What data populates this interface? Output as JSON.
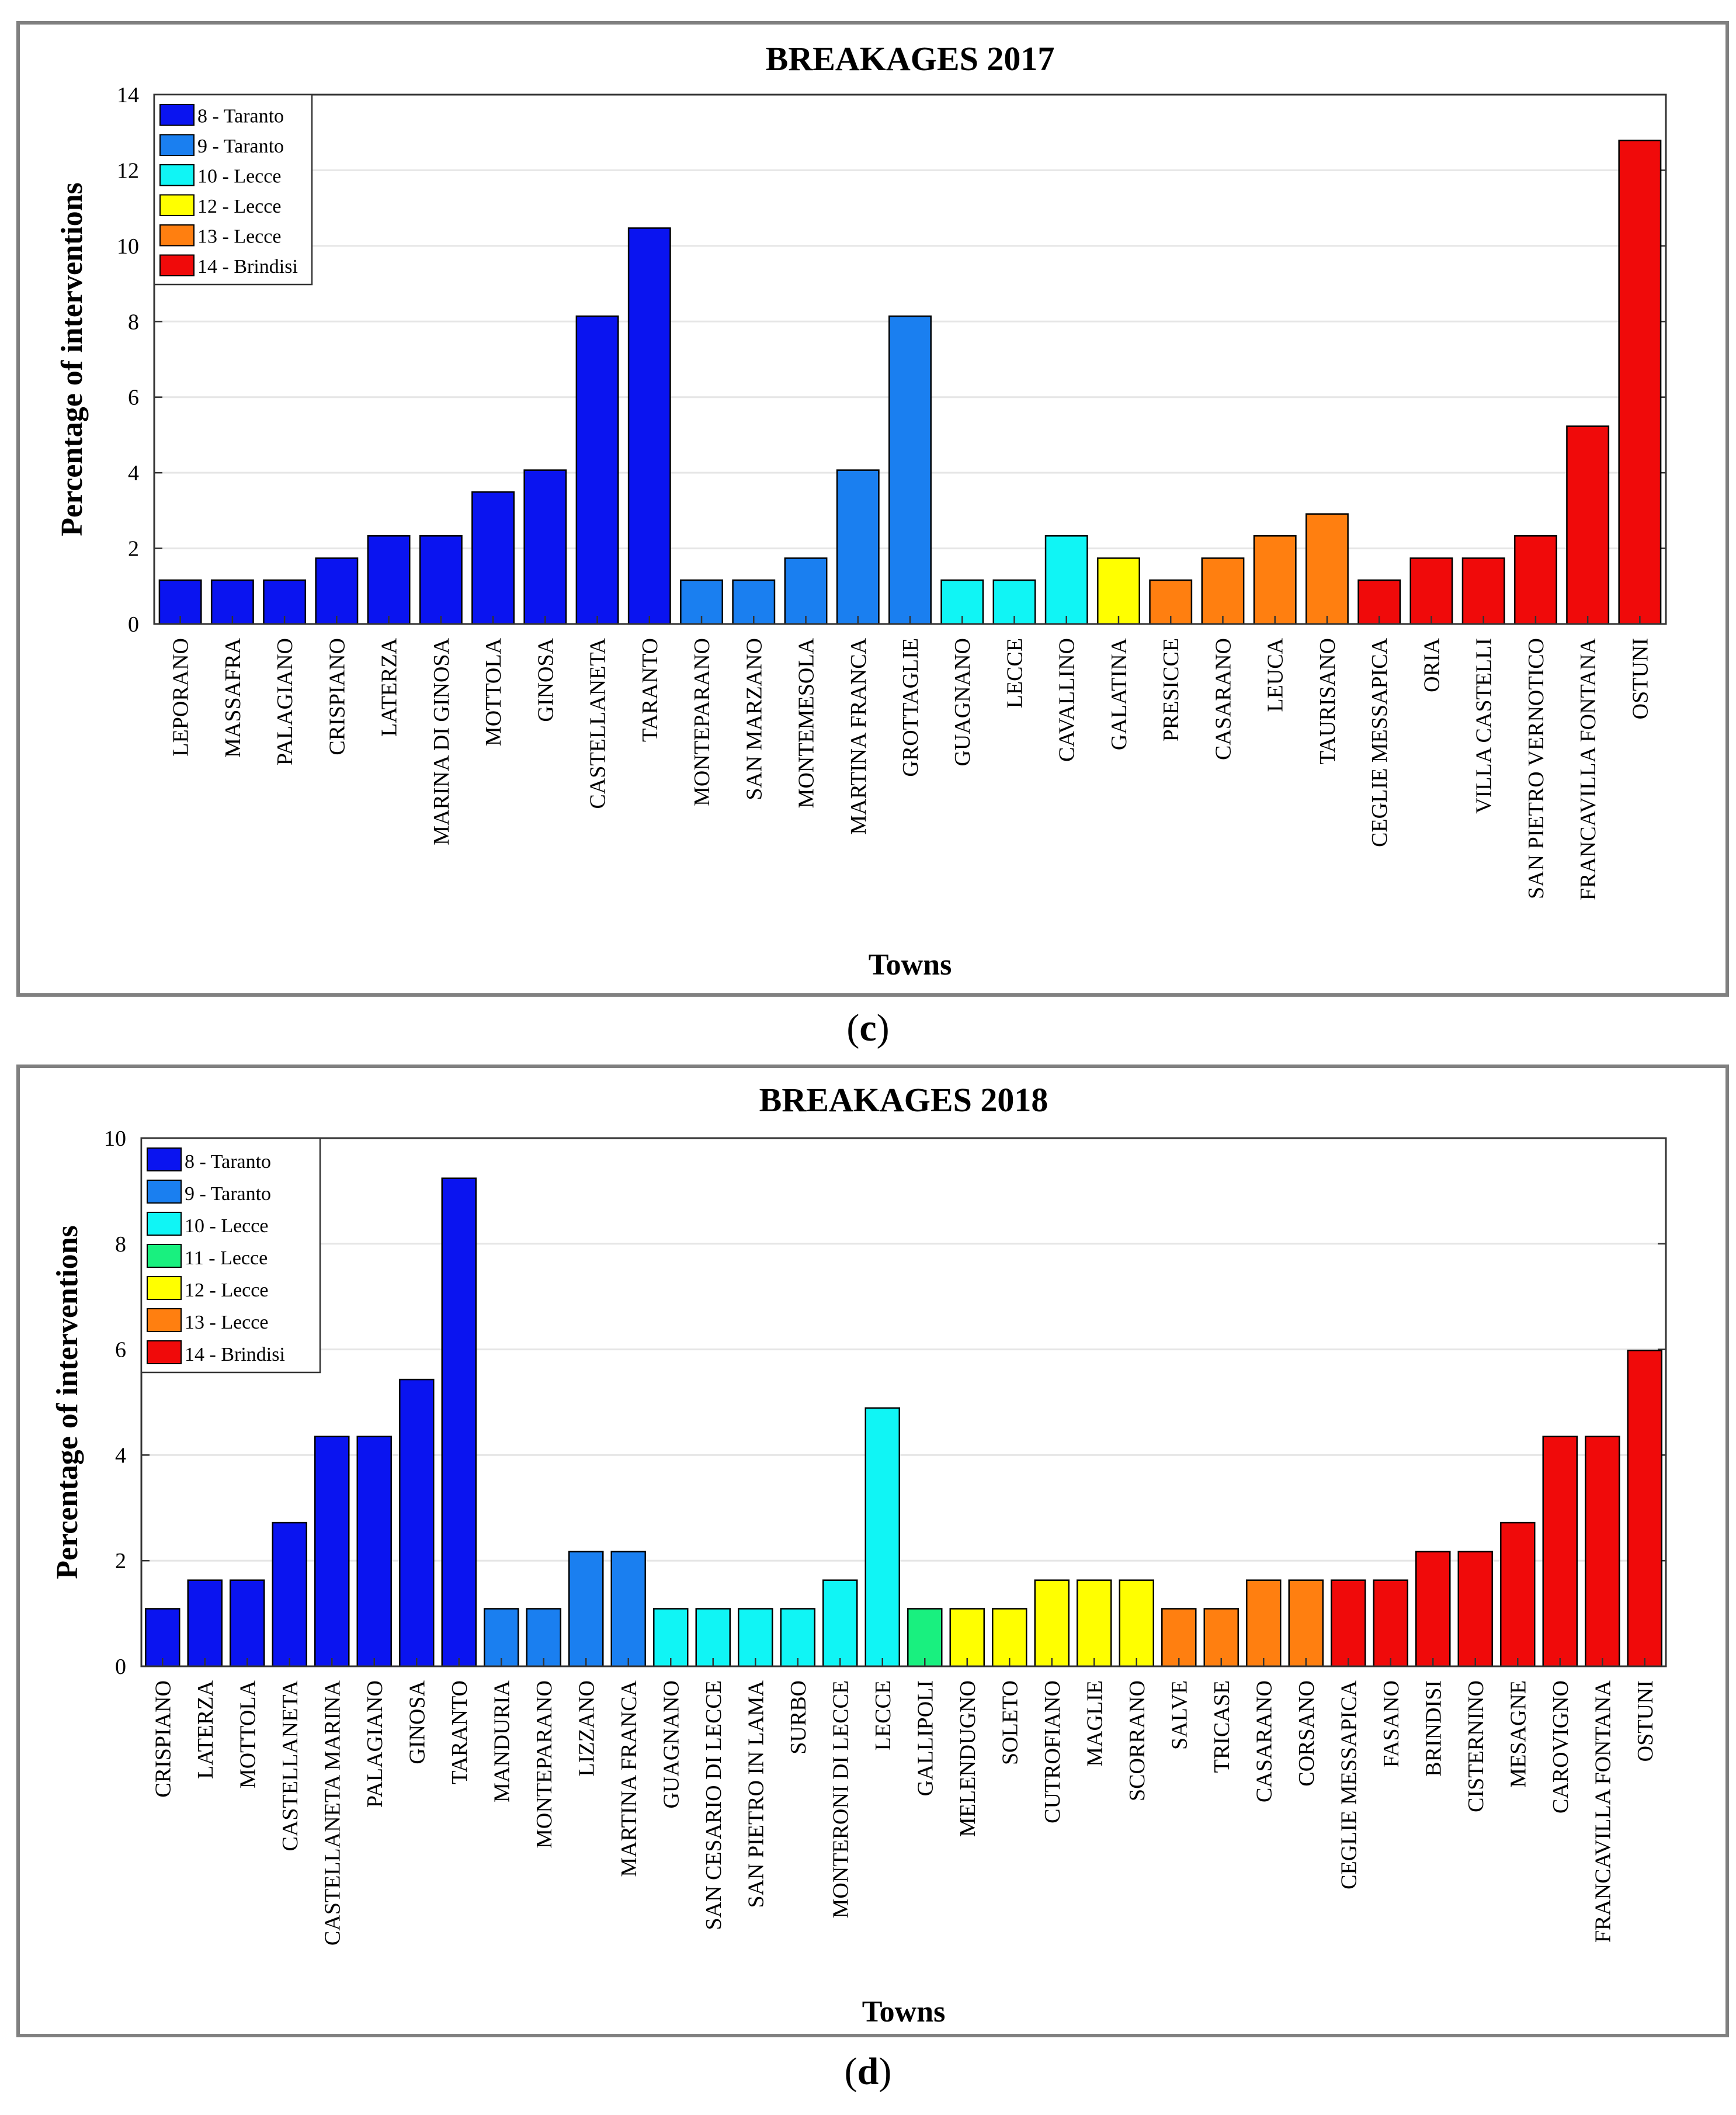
{
  "captions": [
    "c",
    "d"
  ],
  "chart_data": [
    {
      "type": "bar",
      "title": "BREAKAGES 2017",
      "xlabel": "Towns",
      "ylabel": "Percentage of interventions",
      "ylim": [
        0,
        14
      ],
      "yticks": [
        0,
        2,
        4,
        6,
        8,
        10,
        12,
        14
      ],
      "grid": true,
      "legend_position": "top-left",
      "legend": [
        {
          "label": "8 - Taranto",
          "color": "#0a14f0"
        },
        {
          "label": "9 - Taranto",
          "color": "#1a7ff0"
        },
        {
          "label": "10 - Lecce",
          "color": "#10f5f5"
        },
        {
          "label": "12 - Lecce",
          "color": "#ffff00"
        },
        {
          "label": "13 - Lecce",
          "color": "#ff7f10"
        },
        {
          "label": "14 - Brindisi",
          "color": "#f00a0a"
        }
      ],
      "categories": [
        "LEPORANO",
        "MASSAFRA",
        "PALAGIANO",
        "CRISPIANO",
        "LATERZA",
        "MARINA DI GINOSA",
        "MOTTOLA",
        "GINOSA",
        "CASTELLANETA",
        "TARANTO",
        "MONTEPARANO",
        "SAN MARZANO",
        "MONTEMESOLA",
        "MARTINA FRANCA",
        "GROTTAGLIE",
        "GUAGNANO",
        "LECCE",
        "CAVALLINO",
        "GALATINA",
        "PRESICCE",
        "CASARANO",
        "LEUCA",
        "TAURISANO",
        "CEGLIE MESSAPICA",
        "ORIA",
        "VILLA CASTELLI",
        "SAN PIETRO VERNOTICO",
        "FRANCAVILLA FONTANA",
        "OSTUNI"
      ],
      "values": [
        1.16,
        1.16,
        1.16,
        1.74,
        2.33,
        2.33,
        3.49,
        4.07,
        8.14,
        10.47,
        1.16,
        1.16,
        1.74,
        4.07,
        8.14,
        1.16,
        1.16,
        2.33,
        1.74,
        1.16,
        1.74,
        2.33,
        2.91,
        1.16,
        1.74,
        1.74,
        2.33,
        5.23,
        12.79
      ],
      "groups": [
        0,
        0,
        0,
        0,
        0,
        0,
        0,
        0,
        0,
        0,
        1,
        1,
        1,
        1,
        1,
        2,
        2,
        2,
        3,
        4,
        4,
        4,
        4,
        5,
        5,
        5,
        5,
        5,
        5
      ]
    },
    {
      "type": "bar",
      "title": "BREAKAGES 2018",
      "xlabel": "Towns",
      "ylabel": "Percentage of interventions",
      "ylim": [
        0,
        10
      ],
      "yticks": [
        0,
        2,
        4,
        6,
        8,
        10
      ],
      "grid": true,
      "legend_position": "top-left",
      "legend": [
        {
          "label": "8 - Taranto",
          "color": "#0a14f0"
        },
        {
          "label": "9 - Taranto",
          "color": "#1a7ff0"
        },
        {
          "label": "10 - Lecce",
          "color": "#10f5f5"
        },
        {
          "label": "11 - Lecce",
          "color": "#19f07f"
        },
        {
          "label": "12 - Lecce",
          "color": "#ffff00"
        },
        {
          "label": "13 - Lecce",
          "color": "#ff7f10"
        },
        {
          "label": "14 - Brindisi",
          "color": "#f00a0a"
        }
      ],
      "categories": [
        "CRISPIANO",
        "LATERZA",
        "MOTTOLA",
        "CASTELLANETA",
        "CASTELLANETA MARINA",
        "PALAGIANO",
        "GINOSA",
        "TARANTO",
        "MANDURIA",
        "MONTEPARANO",
        "LIZZANO",
        "MARTINA FRANCA",
        "GUAGNANO",
        "SAN CESARIO DI LECCE",
        "SAN PIETRO IN LAMA",
        "SURBO",
        "MONTERONI DI LECCE",
        "LECCE",
        "GALLIPOLI",
        "MELENDUGNO",
        "SOLETO",
        "CUTROFIANO",
        "MAGLIE",
        "SCORRANO",
        "SALVE",
        "TRICASE",
        "CASARANO",
        "CORSANO",
        "CEGLIE MESSAPICA",
        "FASANO",
        "BRINDISI",
        "CISTERNINO",
        "MESAGNE",
        "CAROVIGNO",
        "FRANCAVILLA FONTANA",
        "OSTUNI"
      ],
      "values": [
        1.09,
        1.63,
        1.63,
        2.72,
        4.35,
        4.35,
        5.43,
        9.24,
        1.09,
        1.09,
        2.17,
        2.17,
        1.09,
        1.09,
        1.09,
        1.09,
        1.63,
        4.89,
        1.09,
        1.09,
        1.09,
        1.63,
        1.63,
        1.63,
        1.09,
        1.09,
        1.63,
        1.63,
        1.63,
        1.63,
        2.17,
        2.17,
        2.72,
        4.35,
        4.35,
        5.98
      ],
      "groups": [
        0,
        0,
        0,
        0,
        0,
        0,
        0,
        0,
        1,
        1,
        1,
        1,
        2,
        2,
        2,
        2,
        2,
        2,
        3,
        4,
        4,
        4,
        4,
        4,
        5,
        5,
        5,
        5,
        6,
        6,
        6,
        6,
        6,
        6,
        6,
        6
      ]
    }
  ]
}
